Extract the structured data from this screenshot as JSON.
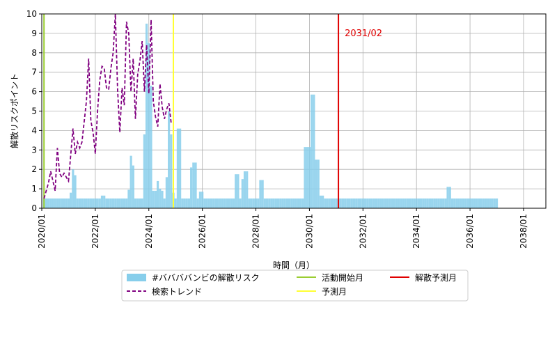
{
  "chart_data": {
    "type": "bar",
    "xlabel": "時間（月）",
    "ylabel": "解散リスクポイント",
    "ylim": [
      0,
      10
    ],
    "yticks": [
      "0",
      "1",
      "2",
      "3",
      "4",
      "5",
      "6",
      "7",
      "8",
      "9",
      "10"
    ],
    "xticks": [
      {
        "label": "2020/01",
        "year": 2020,
        "month": 1
      },
      {
        "label": "2022/01",
        "year": 2022,
        "month": 1
      },
      {
        "label": "2024/01",
        "year": 2024,
        "month": 1
      },
      {
        "label": "2026/01",
        "year": 2026,
        "month": 1
      },
      {
        "label": "2028/01",
        "year": 2028,
        "month": 1
      },
      {
        "label": "2030/01",
        "year": 2030,
        "month": 1
      },
      {
        "label": "2032/01",
        "year": 2032,
        "month": 1
      },
      {
        "label": "2034/01",
        "year": 2034,
        "month": 1
      },
      {
        "label": "2036/01",
        "year": 2036,
        "month": 1
      },
      {
        "label": "2038/01",
        "year": 2038,
        "month": 1
      }
    ],
    "grid": true,
    "legend_position": "bottom-center",
    "start": {
      "year": 2020,
      "month": 2
    },
    "risk_series": {
      "name": "#ババババンビの解散リスク",
      "color": "#87ceeb",
      "values": [
        0.5,
        0.5,
        0.5,
        0.5,
        0.5,
        0.5,
        0.5,
        0.5,
        0.5,
        0.5,
        0.5,
        0.5,
        0.8,
        2.0,
        1.7,
        0.5,
        0.5,
        0.5,
        0.5,
        0.5,
        0.5,
        0.5,
        0.5,
        0.5,
        0.5,
        0.5,
        0.65,
        0.65,
        0.5,
        0.5,
        0.5,
        0.5,
        0.5,
        0.5,
        0.5,
        0.5,
        0.5,
        0.5,
        0.95,
        2.7,
        2.2,
        0.5,
        0.5,
        0.5,
        0.5,
        3.8,
        9.5,
        8.5,
        6.3,
        0.9,
        0.9,
        1.4,
        1.0,
        0.9,
        0.5,
        1.6,
        5.0,
        3.8,
        0.8,
        0.5,
        4.1,
        4.1,
        0.5,
        0.5,
        0.5,
        0.5,
        2.1,
        2.35,
        2.35,
        0.5,
        0.85,
        0.85,
        0.5,
        0.5,
        0.5,
        0.5,
        0.5,
        0.5,
        0.5,
        0.5,
        0.5,
        0.5,
        0.5,
        0.5,
        0.5,
        0.5,
        1.75,
        1.75,
        0.5,
        1.5,
        1.9,
        1.9,
        0.5,
        0.5,
        0.5,
        0.5,
        0.5,
        1.45,
        1.45,
        0.5,
        0.5,
        0.5,
        0.5,
        0.5,
        0.5,
        0.5,
        0.5,
        0.5,
        0.5,
        0.5,
        0.5,
        0.5,
        0.5,
        0.5,
        0.5,
        0.5,
        0.5,
        3.15,
        3.15,
        3.15,
        5.85,
        5.85,
        2.5,
        2.5,
        0.65,
        0.65,
        0.5,
        0.5,
        0.5,
        0.5,
        0.5,
        0.5,
        0.5,
        0.5,
        0.5,
        0.5,
        0.5,
        0.5,
        0.5,
        0.5,
        0.5,
        0.5,
        0.5,
        0.5,
        0.5,
        0.5,
        0.5,
        0.5,
        0.5,
        0.5,
        0.5,
        0.5,
        0.5,
        0.5,
        0.5,
        0.5,
        0.5,
        0.5,
        0.5,
        0.5,
        0.5,
        0.5,
        0.5,
        0.5,
        0.5,
        0.5,
        0.5,
        0.5,
        0.5,
        0.5,
        0.5,
        0.5,
        0.5,
        0.5,
        0.5,
        0.5,
        0.5,
        0.5,
        0.5,
        0.5,
        0.5,
        1.1,
        1.1,
        0.5,
        0.5,
        0.5,
        0.5,
        0.5,
        0.5,
        0.5,
        0.5,
        0.5,
        0.5,
        0.5,
        0.5,
        0.5,
        0.5,
        0.5,
        0.5,
        0.5,
        0.5,
        0.5,
        0.5,
        0.5
      ]
    },
    "trend_series": {
      "name": "検索トレンド",
      "color": "#800080",
      "points": [
        {
          "x": "2020-02",
          "y": 0.5
        },
        {
          "x": "2020-04",
          "y": 1.3
        },
        {
          "x": "2020-05",
          "y": 1.9
        },
        {
          "x": "2020-06",
          "y": 1.4
        },
        {
          "x": "2020-07",
          "y": 0.9
        },
        {
          "x": "2020-08",
          "y": 3.1
        },
        {
          "x": "2020-09",
          "y": 1.8
        },
        {
          "x": "2020-10",
          "y": 1.6
        },
        {
          "x": "2020-11",
          "y": 1.8
        },
        {
          "x": "2021-01",
          "y": 1.4
        },
        {
          "x": "2021-03",
          "y": 4.1
        },
        {
          "x": "2021-04",
          "y": 2.8
        },
        {
          "x": "2021-05",
          "y": 3.4
        },
        {
          "x": "2021-06",
          "y": 3.1
        },
        {
          "x": "2021-07",
          "y": 3.4
        },
        {
          "x": "2021-09",
          "y": 5.5
        },
        {
          "x": "2021-10",
          "y": 7.7
        },
        {
          "x": "2021-11",
          "y": 4.5
        },
        {
          "x": "2021-12",
          "y": 3.9
        },
        {
          "x": "2022-01",
          "y": 2.8
        },
        {
          "x": "2022-02",
          "y": 5.0
        },
        {
          "x": "2022-03",
          "y": 6.6
        },
        {
          "x": "2022-04",
          "y": 7.3
        },
        {
          "x": "2022-05",
          "y": 7.2
        },
        {
          "x": "2022-06",
          "y": 6.2
        },
        {
          "x": "2022-07",
          "y": 6.1
        },
        {
          "x": "2022-08",
          "y": 7.2
        },
        {
          "x": "2022-09",
          "y": 8.0
        },
        {
          "x": "2022-10",
          "y": 10.0
        },
        {
          "x": "2022-11",
          "y": 6.1
        },
        {
          "x": "2022-12",
          "y": 3.9
        },
        {
          "x": "2023-01",
          "y": 6.2
        },
        {
          "x": "2023-02",
          "y": 5.3
        },
        {
          "x": "2023-03",
          "y": 9.6
        },
        {
          "x": "2023-04",
          "y": 9.0
        },
        {
          "x": "2023-05",
          "y": 6.0
        },
        {
          "x": "2023-06",
          "y": 7.7
        },
        {
          "x": "2023-07",
          "y": 4.6
        },
        {
          "x": "2023-08",
          "y": 6.9
        },
        {
          "x": "2023-09",
          "y": 7.6
        },
        {
          "x": "2023-10",
          "y": 8.6
        },
        {
          "x": "2023-11",
          "y": 6.0
        },
        {
          "x": "2023-12",
          "y": 8.4
        },
        {
          "x": "2024-01",
          "y": 5.9
        },
        {
          "x": "2024-02",
          "y": 9.7
        },
        {
          "x": "2024-03",
          "y": 5.5
        },
        {
          "x": "2024-04",
          "y": 4.7
        },
        {
          "x": "2024-05",
          "y": 4.2
        },
        {
          "x": "2024-06",
          "y": 6.4
        },
        {
          "x": "2024-07",
          "y": 5.2
        },
        {
          "x": "2024-08",
          "y": 4.6
        },
        {
          "x": "2024-09",
          "y": 5.1
        },
        {
          "x": "2024-10",
          "y": 5.4
        },
        {
          "x": "2024-11",
          "y": 4.4
        }
      ]
    },
    "vlines": [
      {
        "name": "活動開始月",
        "color": "#9acd32",
        "x": "2020-02"
      },
      {
        "name": "予測月",
        "color": "#ffff33",
        "x": "2024-12"
      },
      {
        "name": "解散予測月",
        "color": "#e00000",
        "x": "2031-02"
      }
    ],
    "annotation": {
      "text": "2031/02",
      "x": "2031-02",
      "y": 9.0,
      "color": "#e00000"
    }
  }
}
